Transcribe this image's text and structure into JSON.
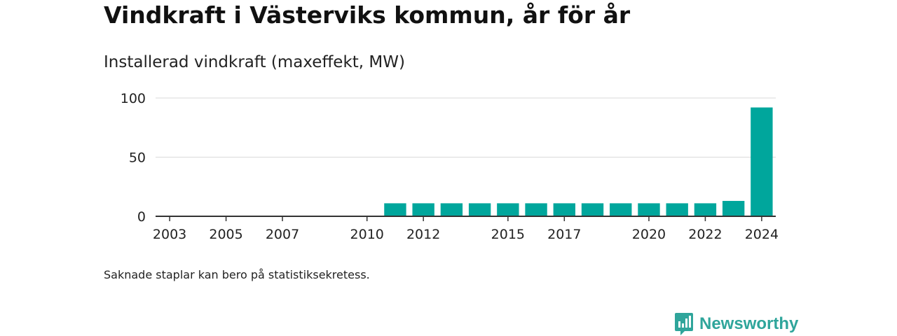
{
  "header": {
    "title": "Vindkraft i Västerviks kommun, år för år",
    "subtitle": "Installerad vindkraft (maxeffekt, MW)"
  },
  "footer": {
    "note": "Saknade staplar kan bero på statistiksekretess.",
    "brand_name": "Newsworthy",
    "brand_icon": "newsworthy-logo-icon"
  },
  "colors": {
    "bar": "#00a69c",
    "grid": "#d9d9d9",
    "axis": "#333333",
    "brand": "#2fa59b"
  },
  "chart_data": {
    "type": "bar",
    "title": "",
    "xlabel": "",
    "ylabel": "",
    "categories": [
      "2003",
      "2004",
      "2005",
      "2006",
      "2007",
      "2008",
      "2009",
      "2010",
      "2011",
      "2012",
      "2013",
      "2014",
      "2015",
      "2016",
      "2017",
      "2018",
      "2019",
      "2020",
      "2021",
      "2022",
      "2023",
      "2024"
    ],
    "values": [
      0,
      0,
      0,
      0,
      0,
      0,
      0,
      0,
      11,
      11,
      11,
      11,
      11,
      11,
      11,
      11,
      11,
      11,
      11,
      11,
      13,
      92
    ],
    "x_tick_labels": [
      "2003",
      "2005",
      "2007",
      "2010",
      "2012",
      "2015",
      "2017",
      "2020",
      "2022",
      "2024"
    ],
    "y_ticks": [
      0,
      50,
      100
    ],
    "ylim": [
      0,
      100
    ],
    "grid": true,
    "legend": "none"
  }
}
